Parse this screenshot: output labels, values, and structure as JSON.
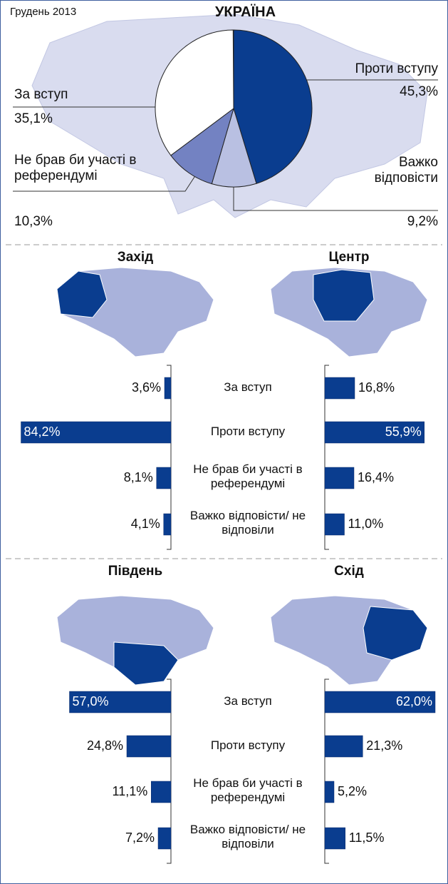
{
  "chart_data": [
    {
      "type": "pie",
      "title": "УКРАЇНА",
      "subtitle": "Грудень 2013",
      "categories": [
        "Проти вступу",
        "Важко відповісти",
        "Не брав би участі в референдумі",
        "За вступ"
      ],
      "values": [
        45.3,
        9.2,
        10.3,
        35.1
      ],
      "value_labels": [
        "45,3%",
        "9,2%",
        "10,3%",
        "35,1%"
      ],
      "colors": [
        "#0a3d8f",
        "#b9c0e2",
        "#7382c2",
        "#ffffff"
      ]
    },
    {
      "type": "bar",
      "categories": [
        "За вступ",
        "Проти вступу",
        "Не брав би участі в референдумі",
        "Важко відповісти/ не відповіли"
      ],
      "series": [
        {
          "name": "Захід",
          "color": "#0a3d8f",
          "values": [
            3.6,
            84.2,
            8.1,
            4.1
          ],
          "value_labels": [
            "3,6%",
            "84,2%",
            "8,1%",
            "4,1%"
          ]
        },
        {
          "name": "Центр",
          "color": "#0a3d8f",
          "values": [
            16.8,
            55.9,
            16.4,
            11.0
          ],
          "value_labels": [
            "16,8%",
            "55,9%",
            "16,4%",
            "11,0%"
          ]
        }
      ]
    },
    {
      "type": "bar",
      "categories": [
        "За вступ",
        "Проти вступу",
        "Не брав би участі в референдумі",
        "Важко відповісти/ не відповіли"
      ],
      "series": [
        {
          "name": "Південь",
          "color": "#0a3d8f",
          "values": [
            57.0,
            24.8,
            11.1,
            7.2
          ],
          "value_labels": [
            "57,0%",
            "24,8%",
            "11,1%",
            "7,2%"
          ]
        },
        {
          "name": "Схід",
          "color": "#0a3d8f",
          "values": [
            62.0,
            21.3,
            5.2,
            11.5
          ],
          "value_labels": [
            "62,0%",
            "21,3%",
            "5,2%",
            "11,5%"
          ]
        }
      ]
    }
  ]
}
